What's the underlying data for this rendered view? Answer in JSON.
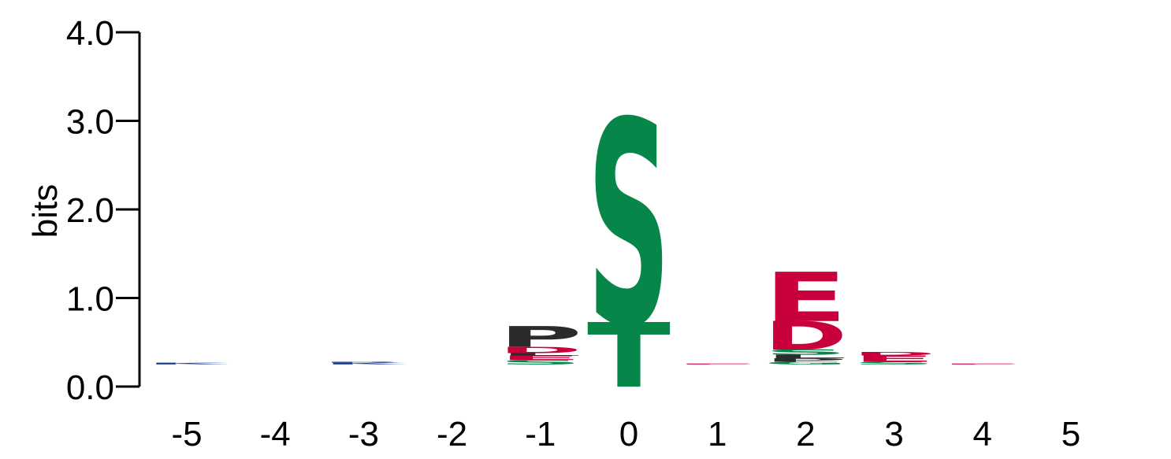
{
  "chart_data": {
    "type": "sequence-logo",
    "ylabel": "bits",
    "ylim": [
      0,
      4
    ],
    "y_ticks": [
      "0.0",
      "1.0",
      "2.0",
      "3.0",
      "4.0"
    ],
    "positions": [
      "-5",
      "-4",
      "-3",
      "-2",
      "-1",
      "0",
      "1",
      "2",
      "3",
      "4",
      "5"
    ],
    "colors": {
      "acidic": "#c8003c",
      "polar": "#07864a",
      "hydrophobic": "#2b2b2b",
      "basic": "#1f3f8f"
    },
    "stacks": [
      {
        "position": "-5",
        "base": 0.25,
        "letters": [
          {
            "letter": "K",
            "height": 0.02,
            "color": "#1f3f8f"
          }
        ]
      },
      {
        "position": "-4",
        "base": 0.25,
        "letters": []
      },
      {
        "position": "-3",
        "base": 0.25,
        "letters": [
          {
            "letter": "K",
            "height": 0.02,
            "color": "#1f3f8f"
          },
          {
            "letter": "R",
            "height": 0.01,
            "color": "#1f3f8f"
          }
        ]
      },
      {
        "position": "-2",
        "base": 0.25,
        "letters": []
      },
      {
        "position": "-1",
        "base": 0.25,
        "letters": [
          {
            "letter": "S",
            "height": 0.05,
            "color": "#07864a"
          },
          {
            "letter": "E",
            "height": 0.05,
            "color": "#c8003c"
          },
          {
            "letter": "L",
            "height": 0.03,
            "color": "#2b2b2b"
          },
          {
            "letter": "D",
            "height": 0.07,
            "color": "#c8003c"
          },
          {
            "letter": "P",
            "height": 0.23,
            "color": "#2b2b2b"
          }
        ]
      },
      {
        "position": "0",
        "base": 0.0,
        "letters": [
          {
            "letter": "T",
            "height": 0.72,
            "color": "#07864a"
          },
          {
            "letter": "S",
            "height": 2.28,
            "color": "#07864a"
          }
        ]
      },
      {
        "position": "1",
        "base": 0.25,
        "letters": [
          {
            "letter": "E",
            "height": 0.01,
            "color": "#c8003c"
          }
        ]
      },
      {
        "position": "2",
        "base": 0.25,
        "letters": [
          {
            "letter": "G",
            "height": 0.03,
            "color": "#07864a"
          },
          {
            "letter": "P",
            "height": 0.04,
            "color": "#2b2b2b"
          },
          {
            "letter": "L",
            "height": 0.04,
            "color": "#2b2b2b"
          },
          {
            "letter": "S",
            "height": 0.06,
            "color": "#07864a"
          },
          {
            "letter": "D",
            "height": 0.32,
            "color": "#c8003c"
          },
          {
            "letter": "E",
            "height": 0.55,
            "color": "#c8003c"
          }
        ]
      },
      {
        "position": "3",
        "base": 0.25,
        "letters": [
          {
            "letter": "S",
            "height": 0.03,
            "color": "#07864a"
          },
          {
            "letter": "E",
            "height": 0.07,
            "color": "#c8003c"
          },
          {
            "letter": "D",
            "height": 0.04,
            "color": "#c8003c"
          }
        ]
      },
      {
        "position": "4",
        "base": 0.25,
        "letters": [
          {
            "letter": "E",
            "height": 0.01,
            "color": "#c8003c"
          }
        ]
      },
      {
        "position": "5",
        "base": 0.25,
        "letters": []
      }
    ]
  }
}
